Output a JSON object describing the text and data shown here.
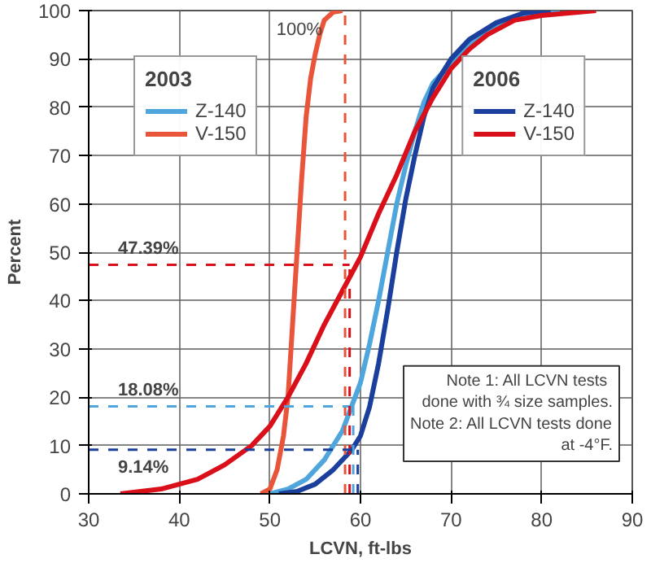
{
  "chart_data": {
    "type": "line",
    "xlabel": "LCVN, ft-lbs",
    "ylabel": "Percent",
    "legend_title": "2003",
    "xlim": [
      30,
      90
    ],
    "ylim": [
      0,
      100
    ],
    "xticks": [
      30,
      40,
      50,
      60,
      70,
      80,
      90
    ],
    "yticks": [
      0,
      10,
      20,
      30,
      40,
      50,
      60,
      70,
      80,
      90,
      100
    ],
    "grid": true,
    "legend": "top left",
    "line_style": "solid",
    "series": [
      {
        "name": "Z-140",
        "color": "#4ea6dc",
        "x": [
          50,
          52,
          54,
          56,
          58,
          59,
          60,
          61,
          62,
          63,
          64,
          65,
          66,
          67,
          68,
          70,
          72,
          75,
          78,
          82
        ],
        "values": [
          0,
          1,
          3,
          7,
          13,
          18,
          23,
          31,
          40,
          50,
          60,
          68,
          75,
          81,
          85,
          89,
          93,
          97,
          99,
          100
        ]
      },
      {
        "name": "V-150",
        "color": "#e8553a",
        "x": [
          49,
          50,
          50.8,
          51.5,
          52,
          52.5,
          53,
          53.5,
          54,
          54.5,
          55,
          55.5,
          56,
          57,
          58
        ],
        "values": [
          0,
          1,
          5,
          12,
          20,
          35,
          50,
          65,
          78,
          86,
          91,
          95,
          98,
          99.7,
          100
        ]
      },
      {
        "name": "Z-140",
        "color": "#1a3f9c",
        "x": [
          51,
          53,
          55,
          57,
          59,
          60,
          61,
          62,
          63,
          64,
          65,
          66,
          67,
          68,
          70,
          72,
          75,
          78,
          81
        ],
        "values": [
          0,
          0.5,
          2,
          5,
          9,
          12,
          18,
          27,
          38,
          50,
          61,
          70,
          78,
          84,
          90,
          94,
          97.5,
          99.5,
          100
        ]
      },
      {
        "name": "V-150",
        "color": "#d9101a",
        "x": [
          33.5,
          38,
          42,
          45,
          48,
          50,
          52,
          54,
          56,
          58,
          60,
          62,
          64,
          66,
          68,
          70,
          72,
          74,
          77,
          80,
          86
        ],
        "values": [
          0,
          1,
          3,
          6,
          10,
          14,
          20,
          27,
          35,
          42,
          49,
          58,
          66,
          75,
          82,
          88,
          92,
          95,
          98,
          99,
          100
        ]
      }
    ],
    "ref_lines": [
      {
        "axis": "x",
        "value": 58.3,
        "color": "#e8553a",
        "line_style": "dashed"
      },
      {
        "axis": "x",
        "value": 59.2,
        "color": "#4ea6dc",
        "line_style": "dashed"
      },
      {
        "axis": "y",
        "value": 18.08,
        "label": "18.08%",
        "color": "#4ea6dc",
        "line_style": "dashed"
      },
      {
        "axis": "x",
        "value": 58.8,
        "color": "#d9101a",
        "line_style": "dashed"
      },
      {
        "axis": "y",
        "value": 47.39,
        "label": "47.39%",
        "color": "#d9101a",
        "line_style": "dashed"
      },
      {
        "axis": "x",
        "value": 59.7,
        "color": "#1a3f9c",
        "line_style": "dashed"
      },
      {
        "axis": "y",
        "value": 9.14,
        "label": "9.14%",
        "color": "#1a3f9c",
        "line_style": "dashed"
      }
    ],
    "annotations": [
      "2006",
      {
        "text": "100%",
        "x": 58.3,
        "y": 100
      },
      "Note 1:  All LCVN tests\ndone with ¾ size samples.\nNote 2: All LCVN tests done\nat -4°F."
    ]
  }
}
